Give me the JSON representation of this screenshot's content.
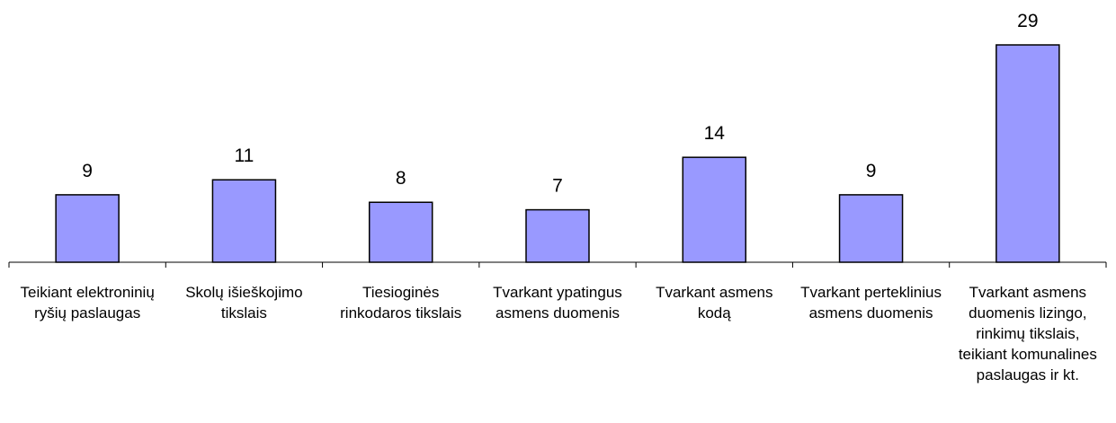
{
  "chart_data": {
    "type": "bar",
    "categories": [
      "Teikiant elektroninių ryšių paslaugas",
      "Skolų išieškojimo tikslais",
      "Tiesioginės rinkodaros tikslais",
      "Tvarkant ypatingus asmens duomenis",
      "Tvarkant asmens kodą",
      "Tvarkant perteklinius asmens duomenis",
      "Tvarkant asmens duomenis lizingo, rinkimų tikslais, teikiant komunalines paslaugas ir kt."
    ],
    "values": [
      9,
      11,
      8,
      7,
      14,
      9,
      29
    ],
    "color": "#9999ff"
  }
}
